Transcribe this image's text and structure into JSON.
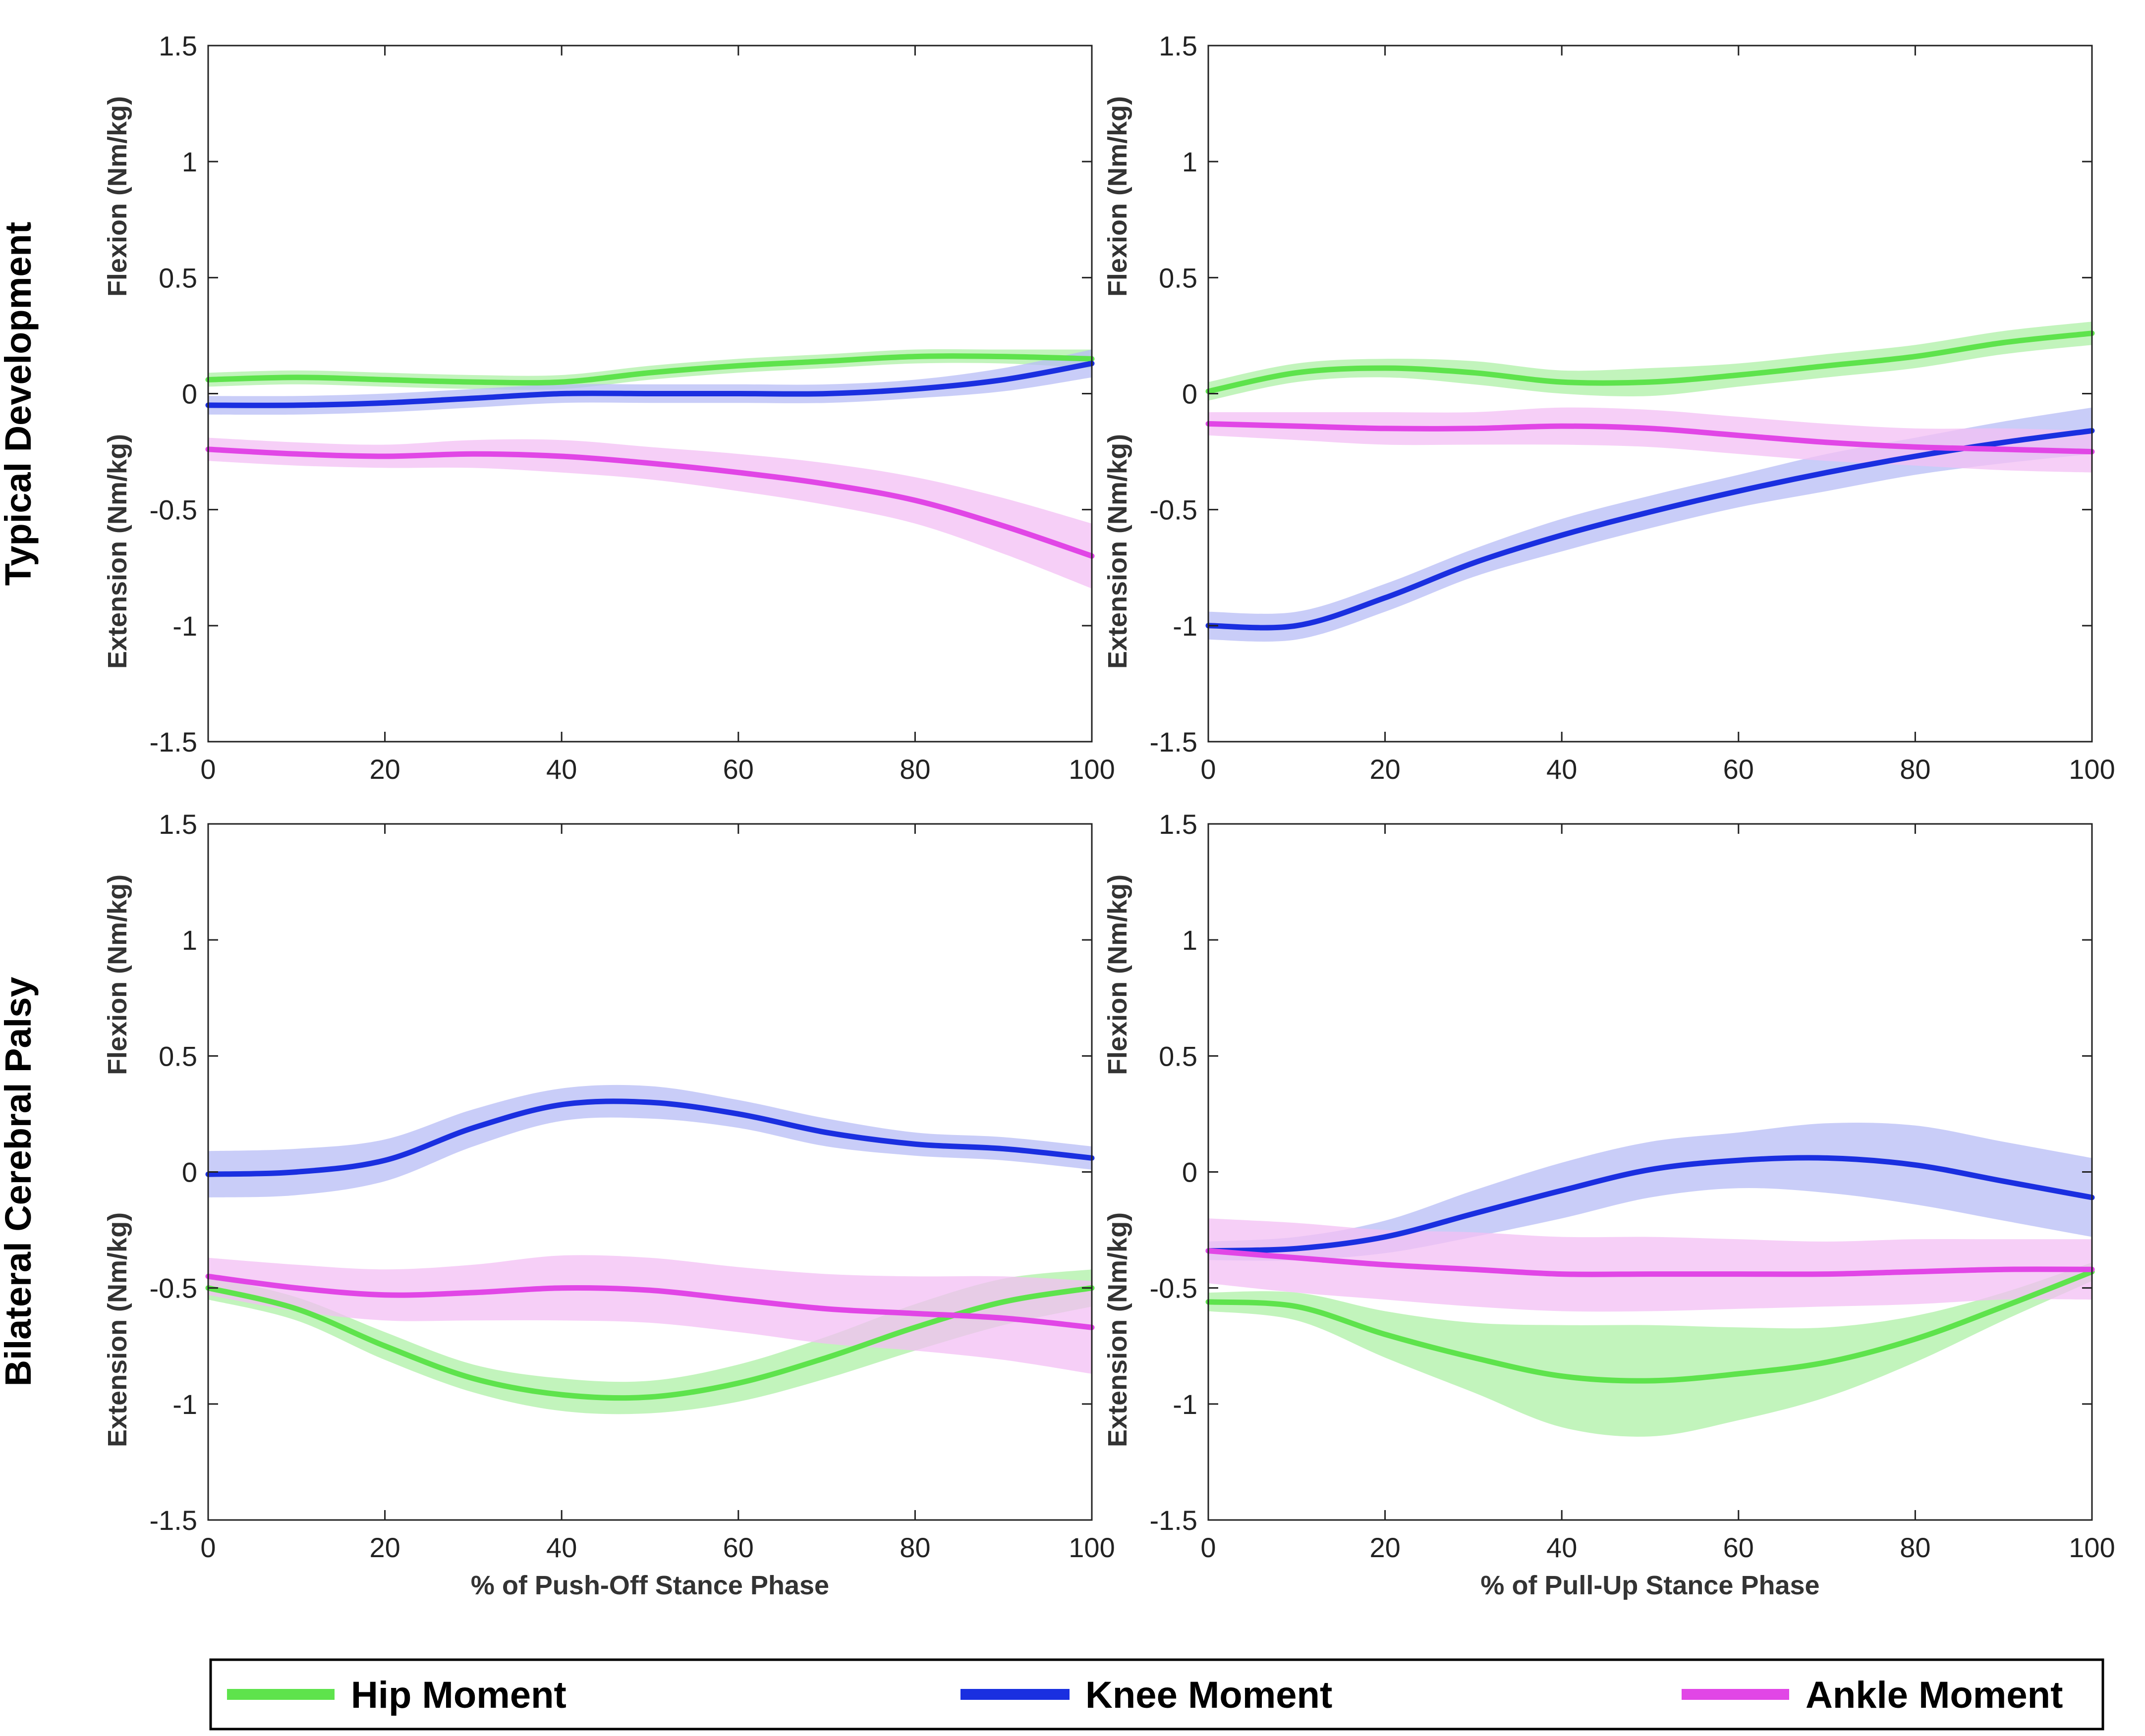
{
  "chart_data": {
    "type": "line",
    "row_labels": [
      "Typical Development",
      "Bilateral Cerebral Palsy"
    ],
    "y_labels": {
      "flexion": "Flexion (Nm/kg)",
      "extension": "Extension (Nm/kg)"
    },
    "x_titles": [
      "% of Push-Off Stance Phase",
      "% of Pull-Up Stance Phase"
    ],
    "xlim": [
      0,
      100
    ],
    "ylim": [
      -1.5,
      1.5
    ],
    "x_ticks": [
      0,
      20,
      40,
      60,
      80,
      100
    ],
    "x_tick_labels": [
      "0",
      "20",
      "40",
      "60",
      "80",
      "100"
    ],
    "y_ticks": [
      1.5,
      1,
      0.5,
      0,
      -0.5,
      -1,
      -1.5
    ],
    "y_tick_labels": [
      "1.5",
      "1",
      "0.5",
      "0",
      "-0.5",
      "-1",
      "-1.5"
    ],
    "legend": [
      {
        "name": "Hip Moment",
        "color": "#5ee34c",
        "band": "#aef0a5"
      },
      {
        "name": "Knee Moment",
        "color": "#1a2fe0",
        "band": "#b7bcf5"
      },
      {
        "name": "Ankle Moment",
        "color": "#e146e6",
        "band": "#f3bff4"
      }
    ],
    "legend_position": "bottom",
    "x": [
      0,
      10,
      20,
      30,
      40,
      50,
      60,
      70,
      80,
      90,
      100
    ],
    "panels": [
      {
        "row": "Typical Development",
        "xlabel": "",
        "series": [
          {
            "name": "Hip Moment",
            "mean": [
              0.06,
              0.07,
              0.06,
              0.05,
              0.05,
              0.09,
              0.12,
              0.14,
              0.16,
              0.16,
              0.15
            ],
            "sd": [
              0.03,
              0.03,
              0.03,
              0.03,
              0.03,
              0.03,
              0.03,
              0.03,
              0.03,
              0.03,
              0.04
            ]
          },
          {
            "name": "Knee Moment",
            "mean": [
              -0.05,
              -0.05,
              -0.04,
              -0.02,
              0.0,
              0.0,
              0.0,
              0.0,
              0.02,
              0.06,
              0.13
            ],
            "sd": [
              0.04,
              0.04,
              0.04,
              0.04,
              0.04,
              0.04,
              0.04,
              0.04,
              0.04,
              0.05,
              0.06
            ]
          },
          {
            "name": "Ankle Moment",
            "mean": [
              -0.24,
              -0.26,
              -0.27,
              -0.26,
              -0.27,
              -0.3,
              -0.34,
              -0.39,
              -0.46,
              -0.57,
              -0.7
            ],
            "sd": [
              0.05,
              0.05,
              0.05,
              0.06,
              0.07,
              0.07,
              0.08,
              0.09,
              0.1,
              0.12,
              0.14
            ]
          }
        ]
      },
      {
        "row": "Typical Development",
        "xlabel": "",
        "series": [
          {
            "name": "Hip Moment",
            "mean": [
              0.01,
              0.09,
              0.11,
              0.09,
              0.05,
              0.05,
              0.08,
              0.12,
              0.16,
              0.22,
              0.26
            ],
            "sd": [
              0.04,
              0.04,
              0.04,
              0.05,
              0.05,
              0.06,
              0.05,
              0.05,
              0.05,
              0.05,
              0.05
            ]
          },
          {
            "name": "Knee Moment",
            "mean": [
              -1.0,
              -1.0,
              -0.88,
              -0.73,
              -0.61,
              -0.51,
              -0.42,
              -0.34,
              -0.27,
              -0.21,
              -0.16
            ],
            "sd": [
              0.06,
              0.06,
              0.06,
              0.06,
              0.07,
              0.07,
              0.07,
              0.08,
              0.08,
              0.09,
              0.1
            ]
          },
          {
            "name": "Ankle Moment",
            "mean": [
              -0.13,
              -0.14,
              -0.15,
              -0.15,
              -0.14,
              -0.15,
              -0.18,
              -0.21,
              -0.23,
              -0.24,
              -0.25
            ],
            "sd": [
              0.05,
              0.06,
              0.07,
              0.07,
              0.08,
              0.08,
              0.08,
              0.08,
              0.08,
              0.09,
              0.09
            ]
          }
        ]
      },
      {
        "row": "Bilateral Cerebral Palsy",
        "xlabel": "% of Push-Off Stance Phase",
        "series": [
          {
            "name": "Hip Moment",
            "mean": [
              -0.5,
              -0.59,
              -0.75,
              -0.89,
              -0.96,
              -0.97,
              -0.91,
              -0.8,
              -0.67,
              -0.56,
              -0.5
            ],
            "sd": [
              0.05,
              0.05,
              0.06,
              0.06,
              0.07,
              0.07,
              0.08,
              0.09,
              0.1,
              0.1,
              0.08
            ]
          },
          {
            "name": "Knee Moment",
            "mean": [
              -0.01,
              0.0,
              0.05,
              0.19,
              0.29,
              0.3,
              0.25,
              0.17,
              0.12,
              0.1,
              0.06
            ],
            "sd": [
              0.1,
              0.1,
              0.09,
              0.08,
              0.07,
              0.07,
              0.06,
              0.06,
              0.05,
              0.05,
              0.05
            ]
          },
          {
            "name": "Ankle Moment",
            "mean": [
              -0.45,
              -0.5,
              -0.53,
              -0.52,
              -0.5,
              -0.51,
              -0.55,
              -0.59,
              -0.61,
              -0.63,
              -0.67
            ],
            "sd": [
              0.08,
              0.1,
              0.11,
              0.12,
              0.14,
              0.14,
              0.14,
              0.15,
              0.16,
              0.18,
              0.2
            ]
          }
        ]
      },
      {
        "row": "Bilateral Cerebral Palsy",
        "xlabel": "% of Pull-Up Stance Phase",
        "series": [
          {
            "name": "Hip Moment",
            "mean": [
              -0.56,
              -0.58,
              -0.7,
              -0.8,
              -0.88,
              -0.9,
              -0.87,
              -0.82,
              -0.72,
              -0.58,
              -0.43
            ],
            "sd": [
              0.04,
              0.06,
              0.1,
              0.15,
              0.22,
              0.24,
              0.2,
              0.15,
              0.1,
              0.06,
              0.04
            ]
          },
          {
            "name": "Knee Moment",
            "mean": [
              -0.34,
              -0.33,
              -0.28,
              -0.18,
              -0.08,
              0.01,
              0.05,
              0.06,
              0.03,
              -0.04,
              -0.11
            ],
            "sd": [
              0.04,
              0.05,
              0.07,
              0.1,
              0.12,
              0.12,
              0.12,
              0.15,
              0.17,
              0.17,
              0.17
            ]
          },
          {
            "name": "Ankle Moment",
            "mean": [
              -0.34,
              -0.37,
              -0.4,
              -0.42,
              -0.44,
              -0.44,
              -0.44,
              -0.44,
              -0.43,
              -0.42,
              -0.42
            ],
            "sd": [
              0.14,
              0.15,
              0.15,
              0.16,
              0.16,
              0.16,
              0.15,
              0.14,
              0.14,
              0.13,
              0.13
            ]
          }
        ]
      }
    ]
  }
}
